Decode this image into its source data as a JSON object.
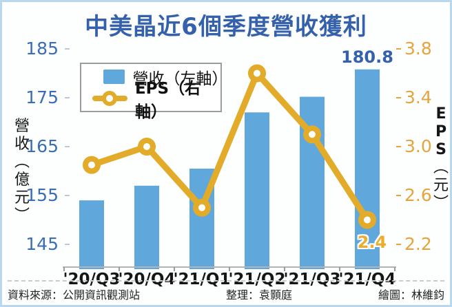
{
  "title": "中美晶近6個季度營收獲利",
  "chart_data": {
    "type": "bar+line combo",
    "categories": [
      "'20/Q3",
      "'20/Q4",
      "'21/Q1",
      "'21/Q2",
      "'21/Q3",
      "'21/Q4"
    ],
    "series": [
      {
        "name": "營收（左軸）",
        "type": "bar",
        "axis": "left",
        "values": [
          154,
          157,
          160.5,
          172,
          175.2,
          180.8
        ],
        "color": "#60a7dc"
      },
      {
        "name": "EPS（右軸）",
        "type": "line",
        "axis": "right",
        "values": [
          2.85,
          3.0,
          2.5,
          3.6,
          3.1,
          2.4
        ],
        "color": "#e2ab29"
      }
    ],
    "left_axis": {
      "title": "營收（億元）",
      "ticks": [
        185,
        175,
        165,
        155,
        145
      ],
      "range": [
        145,
        185
      ],
      "color": "#3b6db6"
    },
    "right_axis": {
      "title": "EPS（元）",
      "ticks": [
        3.8,
        3.4,
        3.0,
        2.6,
        2.2
      ],
      "range": [
        2.2,
        3.8
      ],
      "color": "#e7a43c"
    },
    "point_labels": [
      {
        "series": 0,
        "index": 5,
        "text": "180.8"
      },
      {
        "series": 1,
        "index": 5,
        "text": "2.4"
      }
    ],
    "grid": "off",
    "legend_position": "upper-left"
  },
  "legend": {
    "items": [
      {
        "label": "營收（左軸）",
        "swatch": "bar"
      },
      {
        "label": "EPS（右軸）",
        "swatch": "line-marker"
      }
    ]
  },
  "footer": {
    "source": "資料來源：公開資訊觀測站",
    "editor": "整理：袁顥庭",
    "illustrator": "繪圖：林維鈞"
  }
}
